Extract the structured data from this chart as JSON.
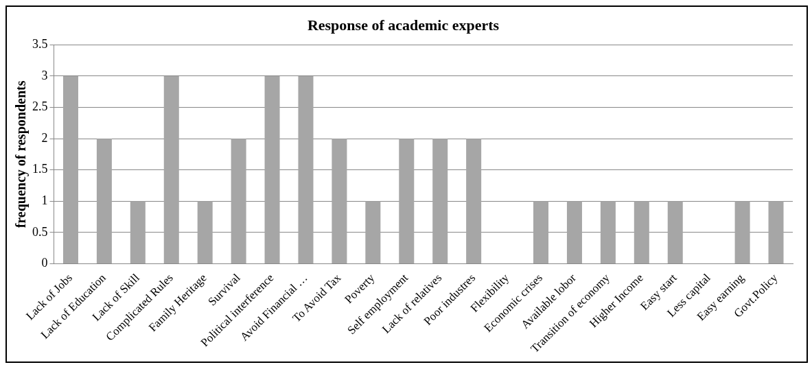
{
  "chart_data": {
    "type": "bar",
    "title": "Response of academic experts",
    "ylabel": "frequency of respondents",
    "categories": [
      "Lack of Jobs",
      "Lack of Education",
      "Lack of Skill",
      "Complicated Rules",
      "Family Heritage",
      "Survival",
      "Political interference",
      "Avoid Financial …",
      "To Avoid Tax",
      "Poverty",
      "Self employment",
      "Lack of relatives",
      "Poor industres",
      "Flexibility",
      "Economic crises",
      "Available lobor",
      "Transition of economy",
      "Higher Income",
      "Easy start",
      "Less capital",
      "Easy earning",
      "Govt.Policy"
    ],
    "values": [
      3,
      2,
      1,
      3,
      1,
      2,
      3,
      3,
      2,
      1,
      2,
      2,
      2,
      0,
      1,
      1,
      1,
      1,
      1,
      0,
      1,
      1
    ],
    "color": "#a6a6a6",
    "ylim": [
      0,
      3.5
    ],
    "yticks": [
      0,
      0.5,
      1,
      1.5,
      2,
      2.5,
      3,
      3.5
    ],
    "grid": "y",
    "legend": false
  }
}
